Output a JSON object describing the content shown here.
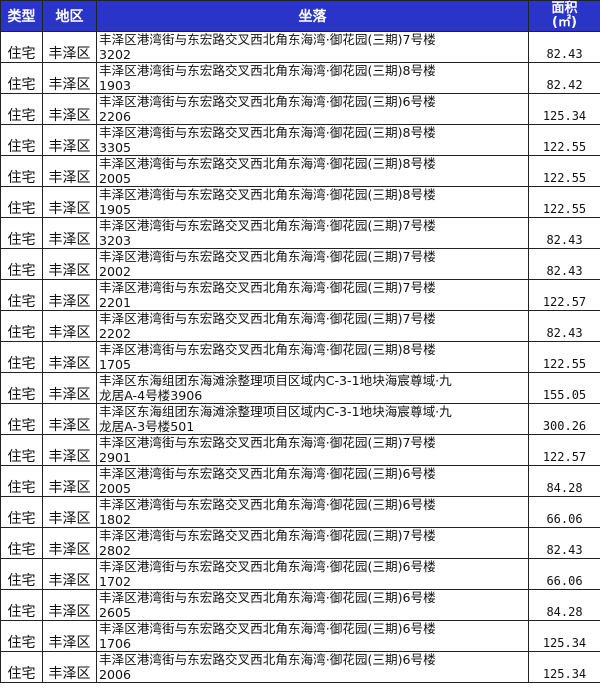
{
  "header": {
    "type": "类型",
    "district": "地区",
    "location": "坐落",
    "area_line1": "面积",
    "area_line2": "(㎡)"
  },
  "colors": {
    "header_bg": "#2a35c8",
    "header_text": "#ffffff"
  },
  "rows": [
    {
      "type": "住宅",
      "district": "丰泽区",
      "addr1": "丰泽区港湾街与东宏路交叉西北角东海湾·御花园(三期)7号楼",
      "addr2": "3202",
      "area": "82.43"
    },
    {
      "type": "住宅",
      "district": "丰泽区",
      "addr1": "丰泽区港湾街与东宏路交叉西北角东海湾·御花园(三期)8号楼",
      "addr2": "1903",
      "area": "82.42"
    },
    {
      "type": "住宅",
      "district": "丰泽区",
      "addr1": "丰泽区港湾街与东宏路交叉西北角东海湾·御花园(三期)6号楼",
      "addr2": "2206",
      "area": "125.34"
    },
    {
      "type": "住宅",
      "district": "丰泽区",
      "addr1": "丰泽区港湾街与东宏路交叉西北角东海湾·御花园(三期)8号楼",
      "addr2": "3305",
      "area": "122.55"
    },
    {
      "type": "住宅",
      "district": "丰泽区",
      "addr1": "丰泽区港湾街与东宏路交叉西北角东海湾·御花园(三期)8号楼",
      "addr2": "2005",
      "area": "122.55"
    },
    {
      "type": "住宅",
      "district": "丰泽区",
      "addr1": "丰泽区港湾街与东宏路交叉西北角东海湾·御花园(三期)8号楼",
      "addr2": "1905",
      "area": "122.55"
    },
    {
      "type": "住宅",
      "district": "丰泽区",
      "addr1": "丰泽区港湾街与东宏路交叉西北角东海湾·御花园(三期)7号楼",
      "addr2": "3203",
      "area": "82.43"
    },
    {
      "type": "住宅",
      "district": "丰泽区",
      "addr1": "丰泽区港湾街与东宏路交叉西北角东海湾·御花园(三期)7号楼",
      "addr2": "2002",
      "area": "82.43"
    },
    {
      "type": "住宅",
      "district": "丰泽区",
      "addr1": "丰泽区港湾街与东宏路交叉西北角东海湾·御花园(三期)7号楼",
      "addr2": "2201",
      "area": "122.57"
    },
    {
      "type": "住宅",
      "district": "丰泽区",
      "addr1": "丰泽区港湾街与东宏路交叉西北角东海湾·御花园(三期)7号楼",
      "addr2": "2202",
      "area": "82.43"
    },
    {
      "type": "住宅",
      "district": "丰泽区",
      "addr1": "丰泽区港湾街与东宏路交叉西北角东海湾·御花园(三期)8号楼",
      "addr2": "1705",
      "area": "122.55"
    },
    {
      "type": "住宅",
      "district": "丰泽区",
      "addr1": "丰泽区东海组团东海滩涂整理项目区域内C-3-1地块海宸尊域·九",
      "addr2": "龙居A-4号楼3906",
      "area": "155.05"
    },
    {
      "type": "住宅",
      "district": "丰泽区",
      "addr1": "丰泽区东海组团东海滩涂整理项目区域内C-3-1地块海宸尊域·九",
      "addr2": "龙居A-3号楼501",
      "area": "300.26"
    },
    {
      "type": "住宅",
      "district": "丰泽区",
      "addr1": "丰泽区港湾街与东宏路交叉西北角东海湾·御花园(三期)7号楼",
      "addr2": "2901",
      "area": "122.57"
    },
    {
      "type": "住宅",
      "district": "丰泽区",
      "addr1": "丰泽区港湾街与东宏路交叉西北角东海湾·御花园(三期)6号楼",
      "addr2": "2005",
      "area": "84.28"
    },
    {
      "type": "住宅",
      "district": "丰泽区",
      "addr1": "丰泽区港湾街与东宏路交叉西北角东海湾·御花园(三期)6号楼",
      "addr2": "1802",
      "area": "66.06"
    },
    {
      "type": "住宅",
      "district": "丰泽区",
      "addr1": "丰泽区港湾街与东宏路交叉西北角东海湾·御花园(三期)7号楼",
      "addr2": "2802",
      "area": "82.43"
    },
    {
      "type": "住宅",
      "district": "丰泽区",
      "addr1": "丰泽区港湾街与东宏路交叉西北角东海湾·御花园(三期)6号楼",
      "addr2": "1702",
      "area": "66.06"
    },
    {
      "type": "住宅",
      "district": "丰泽区",
      "addr1": "丰泽区港湾街与东宏路交叉西北角东海湾·御花园(三期)6号楼",
      "addr2": "2605",
      "area": "84.28"
    },
    {
      "type": "住宅",
      "district": "丰泽区",
      "addr1": "丰泽区港湾街与东宏路交叉西北角东海湾·御花园(三期)6号楼",
      "addr2": "1706",
      "area": "125.34"
    },
    {
      "type": "住宅",
      "district": "丰泽区",
      "addr1": "丰泽区港湾街与东宏路交叉西北角东海湾·御花园(三期)6号楼",
      "addr2": "2006",
      "area": "125.34"
    }
  ]
}
